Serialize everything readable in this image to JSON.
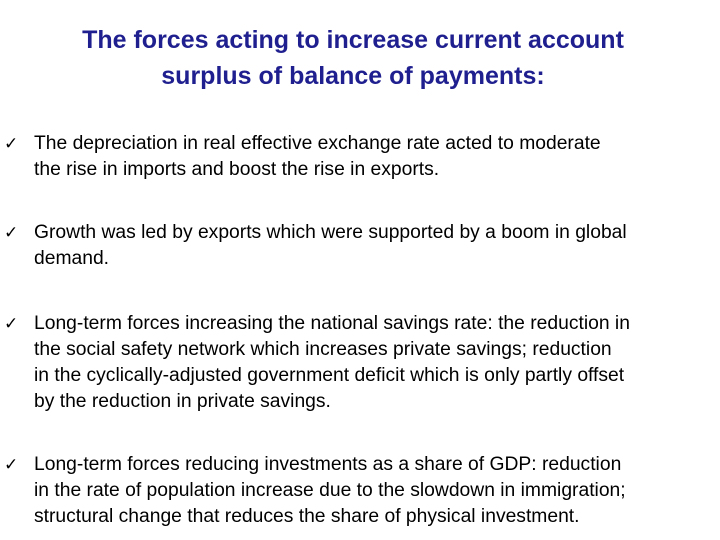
{
  "title": {
    "line1": "The forces acting to increase current account",
    "line2": "surplus of balance of payments:"
  },
  "bullet_icon": "check-mark-icon",
  "bullet_symbol": "✓",
  "colors": {
    "title": "#1f1f8f",
    "text": "#000000",
    "background": "#ffffff"
  },
  "bullets": [
    {
      "lines": [
        "The depreciation in real effective exchange rate acted to moderate",
        "the rise in imports and boost the rise in exports."
      ]
    },
    {
      "lines": [
        "Growth was led by exports which were supported by a boom in global",
        "demand."
      ]
    },
    {
      "lines": [
        "Long-term forces increasing the national savings rate: the reduction in",
        "the social safety network which increases private savings; reduction",
        "in the cyclically-adjusted government deficit which is only partly offset",
        "by the reduction in private savings."
      ]
    },
    {
      "lines": [
        "Long-term forces reducing investments as a share of GDP: reduction",
        "in the rate of population increase due to the slowdown in immigration;",
        "structural change that reduces the share of physical investment."
      ]
    }
  ]
}
